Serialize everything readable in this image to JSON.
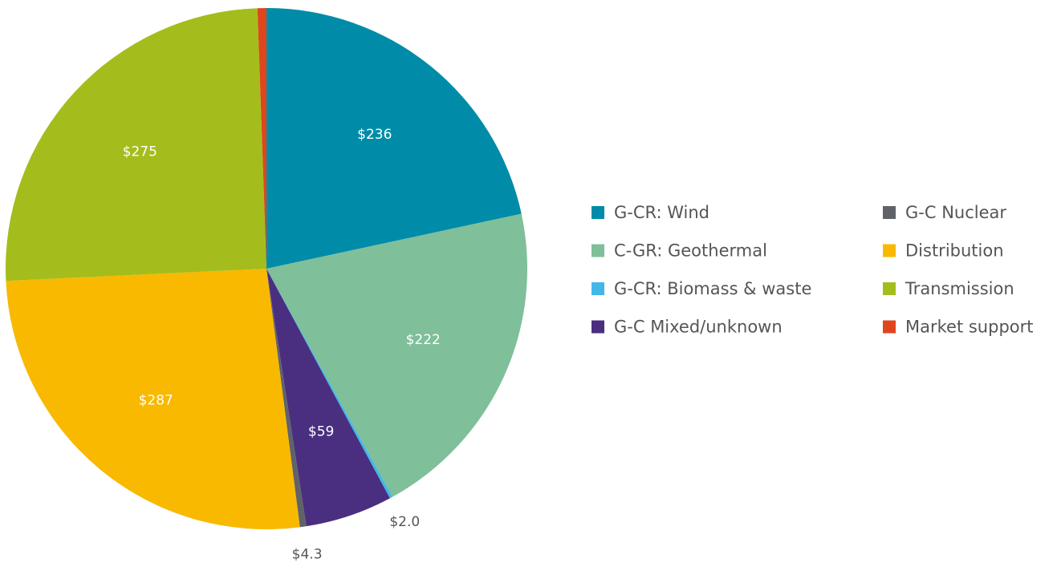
{
  "chart_data": {
    "type": "pie",
    "categories": [
      "G-CR: Wind",
      "C-GR: Geothermal",
      "G-CR: Biomass & waste",
      "G-C Mixed/unknown",
      "G-C Nuclear",
      "Distribution",
      "Transmission",
      "Market support"
    ],
    "values": [
      236,
      222,
      2.0,
      59,
      4.3,
      287,
      275,
      6
    ],
    "value_labels": [
      "$236",
      "$222",
      "$2.0",
      "$59",
      "$4.3",
      "$287",
      "$275",
      null
    ],
    "colors": [
      "#008ca8",
      "#7fbf99",
      "#41b8e8",
      "#4a2f80",
      "#5f6368",
      "#f8b900",
      "#a4bd1c",
      "#e0461c"
    ],
    "legend": "right"
  }
}
